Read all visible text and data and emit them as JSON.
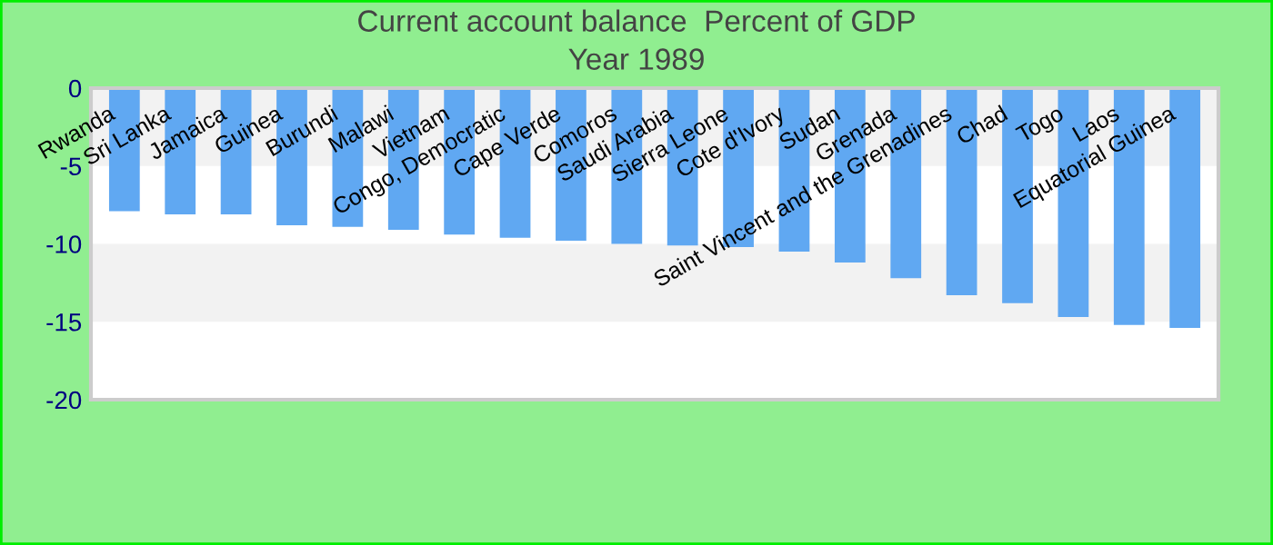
{
  "chart_data": {
    "type": "bar",
    "title": "Current account balance  Percent of GDP",
    "subtitle": "Year 1989",
    "categories": [
      "Rwanda",
      "Sri Lanka",
      "Jamaica",
      "Guinea",
      "Burundi",
      "Malawi",
      "Vietnam",
      "Congo, Democratic",
      "Cape Verde",
      "Comoros",
      "Saudi Arabia",
      "Sierra Leone",
      "Cote d'Ivory",
      "Sudan",
      "Grenada",
      "Saint Vincent and the Grenadines",
      "Chad",
      "Togo",
      "Laos",
      "Equatorial Guinea"
    ],
    "values": [
      -7.9,
      -8.1,
      -8.1,
      -8.8,
      -8.9,
      -9.1,
      -9.4,
      -9.6,
      -9.8,
      -10.0,
      -10.1,
      -10.2,
      -10.5,
      -11.2,
      -12.2,
      -13.3,
      -13.8,
      -14.7,
      -15.2,
      -15.4
    ],
    "color": "#60a8f2",
    "ylim": [
      -20,
      0
    ],
    "yticks": [
      -20,
      -15,
      -10,
      -5,
      0
    ],
    "bands": [
      {
        "axis": "y",
        "from": 0,
        "to": -5,
        "color": "#f2f2f2"
      },
      {
        "axis": "y",
        "from": -10,
        "to": -15,
        "color": "#f2f2f2"
      }
    ],
    "legend": false
  }
}
